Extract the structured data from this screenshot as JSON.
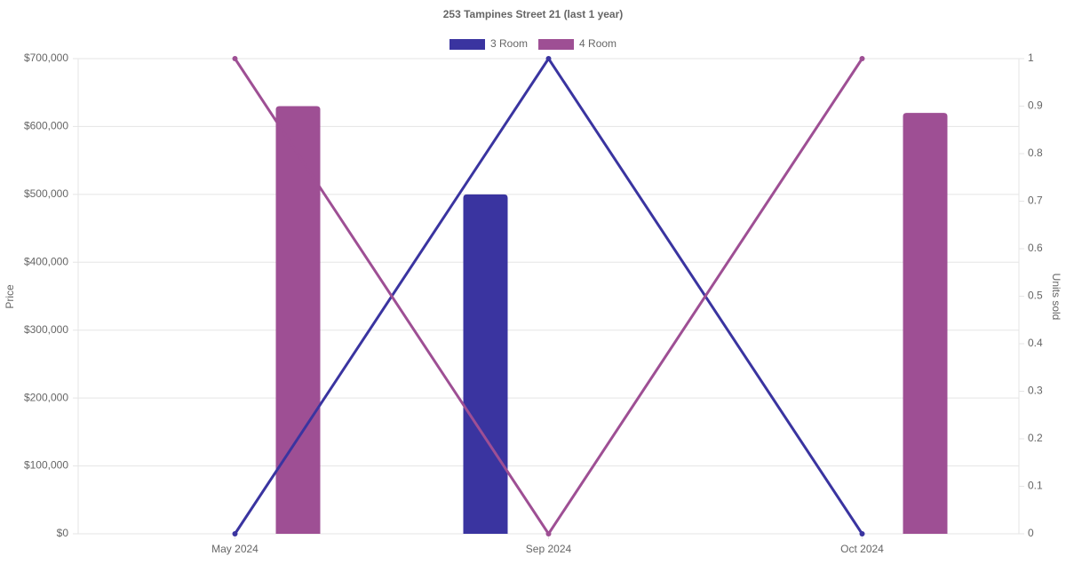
{
  "chart_data": {
    "type": "bar-line",
    "title": "253 Tampines Street 21 (last 1 year)",
    "y_label": "Price",
    "y2_label": "Units sold",
    "categories": [
      "May 2024",
      "Sep 2024",
      "Oct 2024"
    ],
    "series": [
      {
        "name": "3 Room",
        "color": "#3a34a0",
        "values": [
          null,
          500000,
          null
        ],
        "units": [
          0,
          1,
          0
        ]
      },
      {
        "name": "4 Room",
        "color": "#9e4f94",
        "values": [
          630000,
          null,
          620000
        ],
        "units": [
          1,
          0,
          1
        ]
      }
    ],
    "ylim": [
      0,
      700000
    ],
    "yticks": [
      {
        "value": 0,
        "label": "$0"
      },
      {
        "value": 100000,
        "label": "$100,000"
      },
      {
        "value": 200000,
        "label": "$200,000"
      },
      {
        "value": 300000,
        "label": "$300,000"
      },
      {
        "value": 400000,
        "label": "$400,000"
      },
      {
        "value": 500000,
        "label": "$500,000"
      },
      {
        "value": 600000,
        "label": "$600,000"
      },
      {
        "value": 700000,
        "label": "$700,000"
      }
    ],
    "y2lim": [
      0,
      1
    ],
    "y2ticks": [
      0,
      0.1,
      0.2,
      0.3,
      0.4,
      0.5,
      0.6,
      0.7,
      0.8,
      0.9,
      1
    ],
    "grid": true
  }
}
